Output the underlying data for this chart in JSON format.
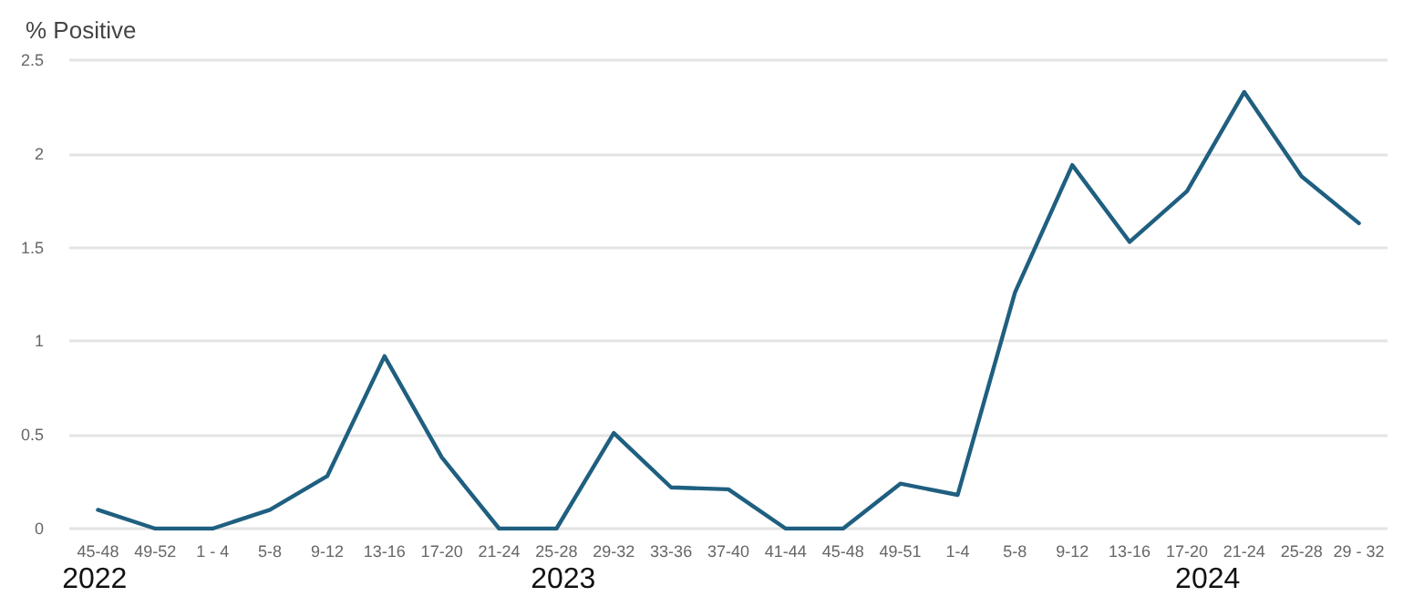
{
  "chart_data": {
    "type": "line",
    "ylabel": "% Positive",
    "categories": [
      "45-48",
      "49-52",
      "1 - 4",
      "5-8",
      "9-12",
      "13-16",
      "17-20",
      "21-24",
      "25-28",
      "29-32",
      "33-36",
      "37-40",
      "41-44",
      "45-48",
      "49-51",
      "1-4",
      "5-8",
      "9-12",
      "13-16",
      "17-20",
      "21-24",
      "25-28",
      "29 - 32"
    ],
    "series": [
      {
        "color": "#1f5f80",
        "values": [
          0.1,
          0,
          0,
          0.1,
          0.28,
          0.92,
          0.38,
          0,
          0,
          0.51,
          0.22,
          0.21,
          0,
          0,
          0.24,
          0.18,
          1.26,
          1.94,
          1.53,
          1.8,
          2.33,
          1.88,
          1.63
        ]
      }
    ],
    "ylim": [
      0,
      2.5
    ],
    "yticks": [
      0,
      0.5,
      1,
      1.5,
      2,
      2.5
    ],
    "grid": "y",
    "marker": "none",
    "line_style": "solid",
    "annotations": [
      "2022",
      "2023",
      "2024"
    ]
  }
}
